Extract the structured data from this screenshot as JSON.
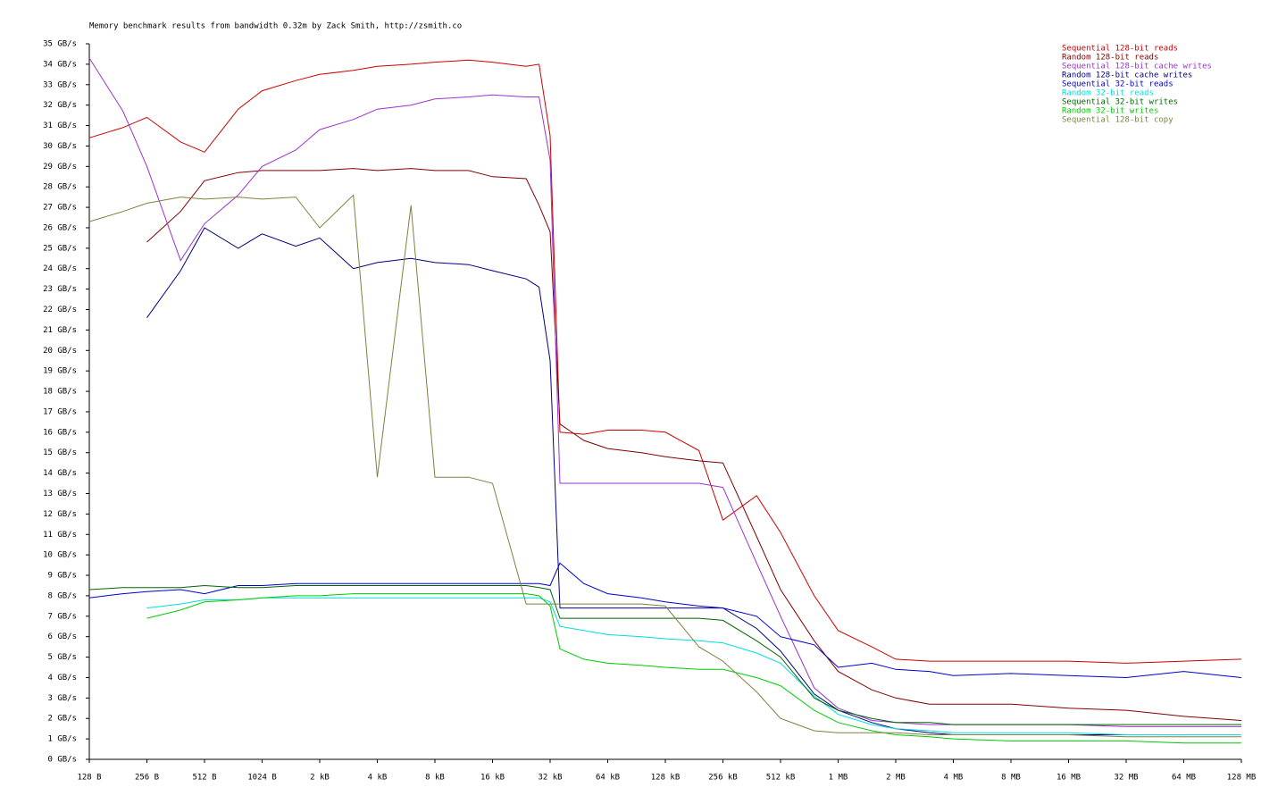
{
  "chart_data": {
    "type": "line",
    "title": "Memory benchmark results from bandwidth 0.32m by Zack Smith, http://zsmith.co",
    "xscale": "log",
    "legend": "top-right",
    "x": [
      128,
      192,
      256,
      384,
      512,
      768,
      1024,
      1536,
      2048,
      3072,
      4096,
      6144,
      8192,
      12288,
      16384,
      24576,
      28672,
      32768,
      36864,
      49152,
      65536,
      98304,
      131072,
      196608,
      262144,
      393216,
      524288,
      786432,
      1048576,
      1572864,
      2097152,
      3145728,
      4194304,
      8388608,
      16777216,
      33554432,
      67108864,
      134217728
    ],
    "xlim": [
      128,
      134217728
    ],
    "xticks": [
      {
        "value": 128,
        "label": "128 B"
      },
      {
        "value": 256,
        "label": "256 B"
      },
      {
        "value": 512,
        "label": "512 B"
      },
      {
        "value": 1024,
        "label": "1024 B"
      },
      {
        "value": 2048,
        "label": "2 kB"
      },
      {
        "value": 4096,
        "label": "4 kB"
      },
      {
        "value": 8192,
        "label": "8 kB"
      },
      {
        "value": 16384,
        "label": "16 kB"
      },
      {
        "value": 32768,
        "label": "32 kB"
      },
      {
        "value": 65536,
        "label": "64 kB"
      },
      {
        "value": 131072,
        "label": "128 kB"
      },
      {
        "value": 262144,
        "label": "256 kB"
      },
      {
        "value": 524288,
        "label": "512 kB"
      },
      {
        "value": 1048576,
        "label": "1 MB"
      },
      {
        "value": 2097152,
        "label": "2 MB"
      },
      {
        "value": 4194304,
        "label": "4 MB"
      },
      {
        "value": 8388608,
        "label": "8 MB"
      },
      {
        "value": 16777216,
        "label": "16 MB"
      },
      {
        "value": 33554432,
        "label": "32 MB"
      },
      {
        "value": 67108864,
        "label": "64 MB"
      },
      {
        "value": 134217728,
        "label": "128 MB"
      }
    ],
    "ylim": [
      0,
      35
    ],
    "yticks": [
      {
        "value": 0,
        "label": "0 GB/s"
      },
      {
        "value": 1,
        "label": "1 GB/s"
      },
      {
        "value": 2,
        "label": "2 GB/s"
      },
      {
        "value": 3,
        "label": "3 GB/s"
      },
      {
        "value": 4,
        "label": "4 GB/s"
      },
      {
        "value": 5,
        "label": "5 GB/s"
      },
      {
        "value": 6,
        "label": "6 GB/s"
      },
      {
        "value": 7,
        "label": "7 GB/s"
      },
      {
        "value": 8,
        "label": "8 GB/s"
      },
      {
        "value": 9,
        "label": "9 GB/s"
      },
      {
        "value": 10,
        "label": "10 GB/s"
      },
      {
        "value": 11,
        "label": "11 GB/s"
      },
      {
        "value": 12,
        "label": "12 GB/s"
      },
      {
        "value": 13,
        "label": "13 GB/s"
      },
      {
        "value": 14,
        "label": "14 GB/s"
      },
      {
        "value": 15,
        "label": "15 GB/s"
      },
      {
        "value": 16,
        "label": "16 GB/s"
      },
      {
        "value": 17,
        "label": "17 GB/s"
      },
      {
        "value": 18,
        "label": "18 GB/s"
      },
      {
        "value": 19,
        "label": "19 GB/s"
      },
      {
        "value": 20,
        "label": "20 GB/s"
      },
      {
        "value": 21,
        "label": "21 GB/s"
      },
      {
        "value": 22,
        "label": "22 GB/s"
      },
      {
        "value": 23,
        "label": "23 GB/s"
      },
      {
        "value": 24,
        "label": "24 GB/s"
      },
      {
        "value": 25,
        "label": "25 GB/s"
      },
      {
        "value": 26,
        "label": "26 GB/s"
      },
      {
        "value": 27,
        "label": "27 GB/s"
      },
      {
        "value": 28,
        "label": "28 GB/s"
      },
      {
        "value": 29,
        "label": "29 GB/s"
      },
      {
        "value": 30,
        "label": "30 GB/s"
      },
      {
        "value": 31,
        "label": "31 GB/s"
      },
      {
        "value": 32,
        "label": "32 GB/s"
      },
      {
        "value": 33,
        "label": "33 GB/s"
      },
      {
        "value": 34,
        "label": "34 GB/s"
      },
      {
        "value": 35,
        "label": "35 GB/s"
      }
    ],
    "series": [
      {
        "name": "Sequential 128-bit reads",
        "color": "#cc0000",
        "values": [
          30.4,
          30.9,
          31.4,
          30.2,
          29.7,
          31.8,
          32.7,
          33.2,
          33.5,
          33.7,
          33.9,
          34.0,
          34.1,
          34.2,
          34.1,
          33.9,
          34.0,
          30.5,
          16.0,
          15.9,
          16.1,
          16.1,
          16.0,
          15.1,
          11.7,
          12.9,
          11.1,
          8.0,
          6.3,
          5.5,
          4.9,
          4.8,
          4.8,
          4.8,
          4.8,
          4.7,
          4.8,
          4.9
        ]
      },
      {
        "name": "Random 128-bit reads",
        "color": "#800000",
        "values": [
          null,
          null,
          25.3,
          26.8,
          28.3,
          28.7,
          28.8,
          28.8,
          28.8,
          28.9,
          28.8,
          28.9,
          28.8,
          28.8,
          28.5,
          28.4,
          27.1,
          25.8,
          16.4,
          15.6,
          15.2,
          15.0,
          14.8,
          14.6,
          14.5,
          10.9,
          8.3,
          5.8,
          4.3,
          3.4,
          3.0,
          2.7,
          2.7,
          2.7,
          2.5,
          2.4,
          2.1,
          1.9
        ]
      },
      {
        "name": "Sequential 128-bit cache writes",
        "color": "#9933cc",
        "values": [
          34.3,
          31.7,
          29.0,
          24.4,
          26.2,
          27.6,
          29.0,
          29.8,
          30.8,
          31.3,
          31.8,
          32.0,
          32.3,
          32.4,
          32.5,
          32.4,
          32.4,
          29.3,
          13.5,
          13.5,
          13.5,
          13.5,
          13.5,
          13.5,
          13.3,
          9.6,
          7.0,
          3.5,
          2.5,
          1.9,
          1.8,
          1.7,
          1.7,
          1.7,
          1.7,
          1.6,
          1.6,
          1.6
        ]
      },
      {
        "name": "Random 128-bit cache writes",
        "color": "#000080",
        "values": [
          null,
          null,
          21.6,
          23.9,
          26.0,
          25.0,
          25.7,
          25.1,
          25.5,
          24.0,
          24.3,
          24.5,
          24.3,
          24.2,
          23.9,
          23.5,
          23.1,
          19.5,
          7.4,
          7.4,
          7.4,
          7.4,
          7.4,
          7.4,
          7.4,
          6.4,
          5.3,
          3.2,
          2.4,
          1.8,
          1.5,
          1.3,
          1.2,
          1.2,
          1.2,
          1.2,
          1.2,
          1.2
        ]
      },
      {
        "name": "Sequential 32-bit reads",
        "color": "#0000cc",
        "values": [
          7.9,
          8.1,
          8.2,
          8.3,
          8.1,
          8.5,
          8.5,
          8.6,
          8.6,
          8.6,
          8.6,
          8.6,
          8.6,
          8.6,
          8.6,
          8.6,
          8.6,
          8.5,
          9.6,
          8.6,
          8.1,
          7.9,
          7.7,
          7.5,
          7.4,
          7.0,
          6.0,
          5.6,
          4.5,
          4.7,
          4.4,
          4.3,
          4.1,
          4.2,
          4.1,
          4.0,
          4.3,
          4.0
        ]
      },
      {
        "name": "Random 32-bit reads",
        "color": "#00dddd",
        "values": [
          null,
          null,
          7.4,
          7.6,
          7.8,
          7.8,
          7.9,
          7.9,
          7.9,
          7.9,
          7.9,
          7.9,
          7.9,
          7.9,
          7.9,
          7.9,
          7.9,
          7.7,
          6.5,
          6.3,
          6.1,
          6.0,
          5.9,
          5.8,
          5.7,
          5.2,
          4.7,
          3.1,
          2.2,
          1.7,
          1.5,
          1.4,
          1.3,
          1.3,
          1.3,
          1.2,
          1.2,
          1.2
        ]
      },
      {
        "name": "Sequential 32-bit writes",
        "color": "#006600",
        "values": [
          8.3,
          8.4,
          8.4,
          8.4,
          8.5,
          8.4,
          8.4,
          8.5,
          8.5,
          8.5,
          8.5,
          8.5,
          8.5,
          8.5,
          8.5,
          8.5,
          8.4,
          8.3,
          6.9,
          6.9,
          6.9,
          6.9,
          6.9,
          6.9,
          6.8,
          5.8,
          5.0,
          3.0,
          2.4,
          2.0,
          1.8,
          1.8,
          1.7,
          1.7,
          1.7,
          1.7,
          1.7,
          1.7
        ]
      },
      {
        "name": "Random 32-bit writes",
        "color": "#00cc00",
        "values": [
          null,
          null,
          6.9,
          7.3,
          7.7,
          7.8,
          7.9,
          8.0,
          8.0,
          8.1,
          8.1,
          8.1,
          8.1,
          8.1,
          8.1,
          8.1,
          8.0,
          7.5,
          5.4,
          4.9,
          4.7,
          4.6,
          4.5,
          4.4,
          4.4,
          4.0,
          3.6,
          2.4,
          1.8,
          1.4,
          1.2,
          1.1,
          1.0,
          0.9,
          0.9,
          0.9,
          0.8,
          0.8
        ]
      },
      {
        "name": "Sequential 128-bit copy",
        "color": "#808040",
        "values": [
          26.3,
          26.8,
          27.2,
          27.5,
          27.4,
          27.5,
          27.4,
          27.5,
          26.0,
          27.6,
          13.8,
          27.1,
          13.8,
          13.8,
          13.5,
          7.6,
          7.6,
          7.6,
          7.6,
          7.6,
          7.6,
          7.6,
          7.5,
          5.5,
          4.8,
          3.3,
          2.0,
          1.4,
          1.3,
          1.3,
          1.3,
          1.2,
          1.2,
          1.2,
          1.2,
          1.1,
          1.1,
          1.1
        ]
      }
    ]
  }
}
